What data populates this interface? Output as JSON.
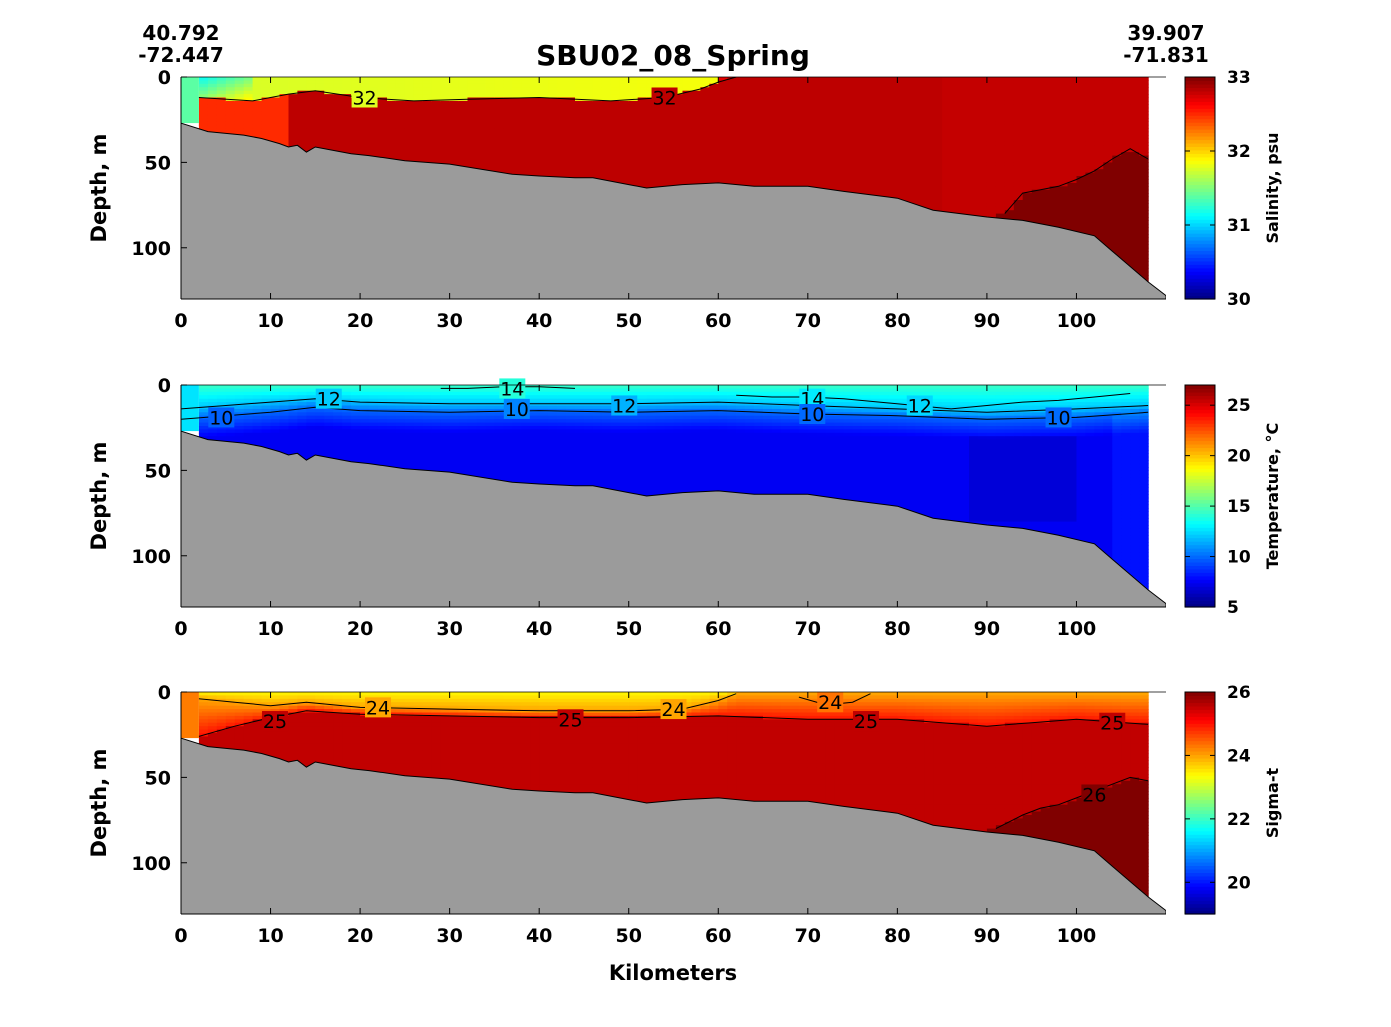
{
  "title": "SBU02_08_Spring",
  "coords": {
    "start_lat": "40.792",
    "start_lon": "-72.447",
    "end_lat": "39.907",
    "end_lon": "-71.831"
  },
  "colors": {
    "seafloor": "#9b9b9b",
    "colormap": "jet"
  },
  "chart_data": [
    {
      "type": "heatmap",
      "variable": "salinity",
      "xlabel": "",
      "ylabel": "Depth, m",
      "colorbar_label": "Salinity, psu",
      "xlim": [
        0,
        110
      ],
      "ylim": [
        130,
        0
      ],
      "xticks": [
        0,
        10,
        20,
        30,
        40,
        50,
        60,
        70,
        80,
        90,
        100
      ],
      "yticks": [
        0,
        50,
        100
      ],
      "clim": [
        30,
        33
      ],
      "colorbar_ticks": [
        30,
        31,
        32,
        33
      ],
      "data_extent_km": [
        0,
        108
      ],
      "seafloor_depth": {
        "x": [
          0,
          3,
          5,
          7,
          9,
          11,
          12,
          13,
          14,
          15,
          17,
          19,
          21,
          25,
          30,
          37,
          40,
          44,
          46,
          50,
          52,
          56,
          60,
          64,
          70,
          74,
          80,
          84,
          90,
          94,
          98,
          102,
          104,
          108,
          110
        ],
        "depth": [
          27,
          32,
          33,
          34,
          36,
          39,
          41,
          40,
          44,
          41,
          43,
          45,
          46,
          49,
          51,
          57,
          58,
          59,
          59,
          63,
          65,
          63,
          62,
          64,
          64,
          67,
          71,
          78,
          82,
          84,
          88,
          93,
          102,
          120,
          128
        ]
      },
      "contours": [
        {
          "level": "32",
          "x": [
            2,
            8,
            12,
            15,
            20,
            26,
            32,
            40,
            48,
            54,
            58,
            60,
            62
          ],
          "depth": [
            12,
            14,
            10,
            8,
            12,
            14,
            13,
            12,
            14,
            12,
            7,
            3,
            0
          ]
        },
        {
          "level": "33",
          "x": [
            92,
            94,
            96,
            98,
            100,
            102,
            104,
            106,
            108
          ],
          "depth": [
            80,
            68,
            66,
            64,
            60,
            55,
            48,
            42,
            48
          ]
        }
      ],
      "contour_labels": [
        {
          "text": "32",
          "x": 20.5,
          "depth": 12
        },
        {
          "text": "32",
          "x": 54,
          "depth": 12
        }
      ]
    },
    {
      "type": "heatmap",
      "variable": "temperature",
      "xlabel": "",
      "ylabel": "Depth, m",
      "colorbar_label": "Temperature, °C",
      "xlim": [
        0,
        110
      ],
      "ylim": [
        130,
        0
      ],
      "xticks": [
        0,
        10,
        20,
        30,
        40,
        50,
        60,
        70,
        80,
        90,
        100
      ],
      "yticks": [
        0,
        50,
        100
      ],
      "clim": [
        5,
        27
      ],
      "colorbar_ticks": [
        5,
        10,
        15,
        20,
        25
      ],
      "data_extent_km": [
        0,
        108
      ],
      "contours": [
        {
          "level": "14",
          "x": [
            29,
            32,
            36,
            40,
            44
          ],
          "depth": [
            2,
            2,
            1,
            1,
            2
          ]
        },
        {
          "level": "14",
          "x": [
            62,
            66,
            70,
            74,
            78,
            82,
            86,
            90,
            94,
            98,
            102,
            106
          ],
          "depth": [
            6,
            7,
            7,
            8,
            10,
            12,
            14,
            12,
            10,
            9,
            7,
            5
          ]
        },
        {
          "level": "12",
          "x": [
            0,
            5,
            10,
            15,
            20,
            30,
            40,
            50,
            60,
            70,
            80,
            90,
            100,
            108
          ],
          "depth": [
            14,
            12,
            10,
            8,
            10,
            11,
            11,
            11,
            10,
            12,
            14,
            16,
            14,
            12
          ]
        },
        {
          "level": "10",
          "x": [
            0,
            5,
            10,
            15,
            20,
            30,
            40,
            50,
            60,
            70,
            80,
            90,
            100,
            108
          ],
          "depth": [
            20,
            18,
            16,
            13,
            15,
            16,
            15,
            16,
            15,
            17,
            18,
            20,
            19,
            16
          ]
        }
      ],
      "contour_labels": [
        {
          "text": "14",
          "x": 37,
          "depth": 2
        },
        {
          "text": "14",
          "x": 70.5,
          "depth": 8
        },
        {
          "text": "12",
          "x": 16.5,
          "depth": 8
        },
        {
          "text": "12",
          "x": 49.5,
          "depth": 12
        },
        {
          "text": "12",
          "x": 82.5,
          "depth": 12
        },
        {
          "text": "10",
          "x": 4.5,
          "depth": 19
        },
        {
          "text": "10",
          "x": 37.5,
          "depth": 14
        },
        {
          "text": "10",
          "x": 70.5,
          "depth": 17
        },
        {
          "text": "10",
          "x": 98,
          "depth": 19
        }
      ]
    },
    {
      "type": "heatmap",
      "variable": "sigma-t",
      "xlabel": "Kilometers",
      "ylabel": "Depth, m",
      "colorbar_label": "Sigma-t",
      "xlim": [
        0,
        110
      ],
      "ylim": [
        130,
        0
      ],
      "xticks": [
        0,
        10,
        20,
        30,
        40,
        50,
        60,
        70,
        80,
        90,
        100
      ],
      "yticks": [
        0,
        50,
        100
      ],
      "clim": [
        19,
        26
      ],
      "colorbar_ticks": [
        20,
        22,
        24,
        26
      ],
      "data_extent_km": [
        0,
        108
      ],
      "contours": [
        {
          "level": "24",
          "x": [
            2,
            6,
            10,
            14,
            20,
            30,
            40,
            50,
            56,
            60,
            62
          ],
          "depth": [
            4,
            6,
            8,
            6,
            9,
            10,
            11,
            11,
            10,
            5,
            1
          ]
        },
        {
          "level": "24",
          "x": [
            69,
            71,
            73,
            75,
            77
          ],
          "depth": [
            3,
            6,
            7,
            6,
            1
          ]
        },
        {
          "level": "25",
          "x": [
            2,
            6,
            10,
            14,
            20,
            30,
            40,
            50,
            60,
            70,
            80,
            85,
            90,
            95,
            100,
            108
          ],
          "depth": [
            26,
            20,
            15,
            11,
            13,
            14,
            15,
            15,
            14,
            16,
            16,
            18,
            20,
            18,
            16,
            19
          ]
        },
        {
          "level": "26",
          "x": [
            91,
            94,
            96,
            98,
            100,
            102,
            104,
            106,
            108
          ],
          "depth": [
            80,
            72,
            68,
            66,
            62,
            58,
            54,
            50,
            52
          ]
        }
      ],
      "contour_labels": [
        {
          "text": "24",
          "x": 22,
          "depth": 9
        },
        {
          "text": "24",
          "x": 55,
          "depth": 10
        },
        {
          "text": "24",
          "x": 72.5,
          "depth": 6
        },
        {
          "text": "25",
          "x": 10.5,
          "depth": 17
        },
        {
          "text": "25",
          "x": 43.5,
          "depth": 16
        },
        {
          "text": "25",
          "x": 76.5,
          "depth": 17
        },
        {
          "text": "25",
          "x": 104,
          "depth": 18
        },
        {
          "text": "26",
          "x": 102,
          "depth": 60
        }
      ]
    }
  ]
}
